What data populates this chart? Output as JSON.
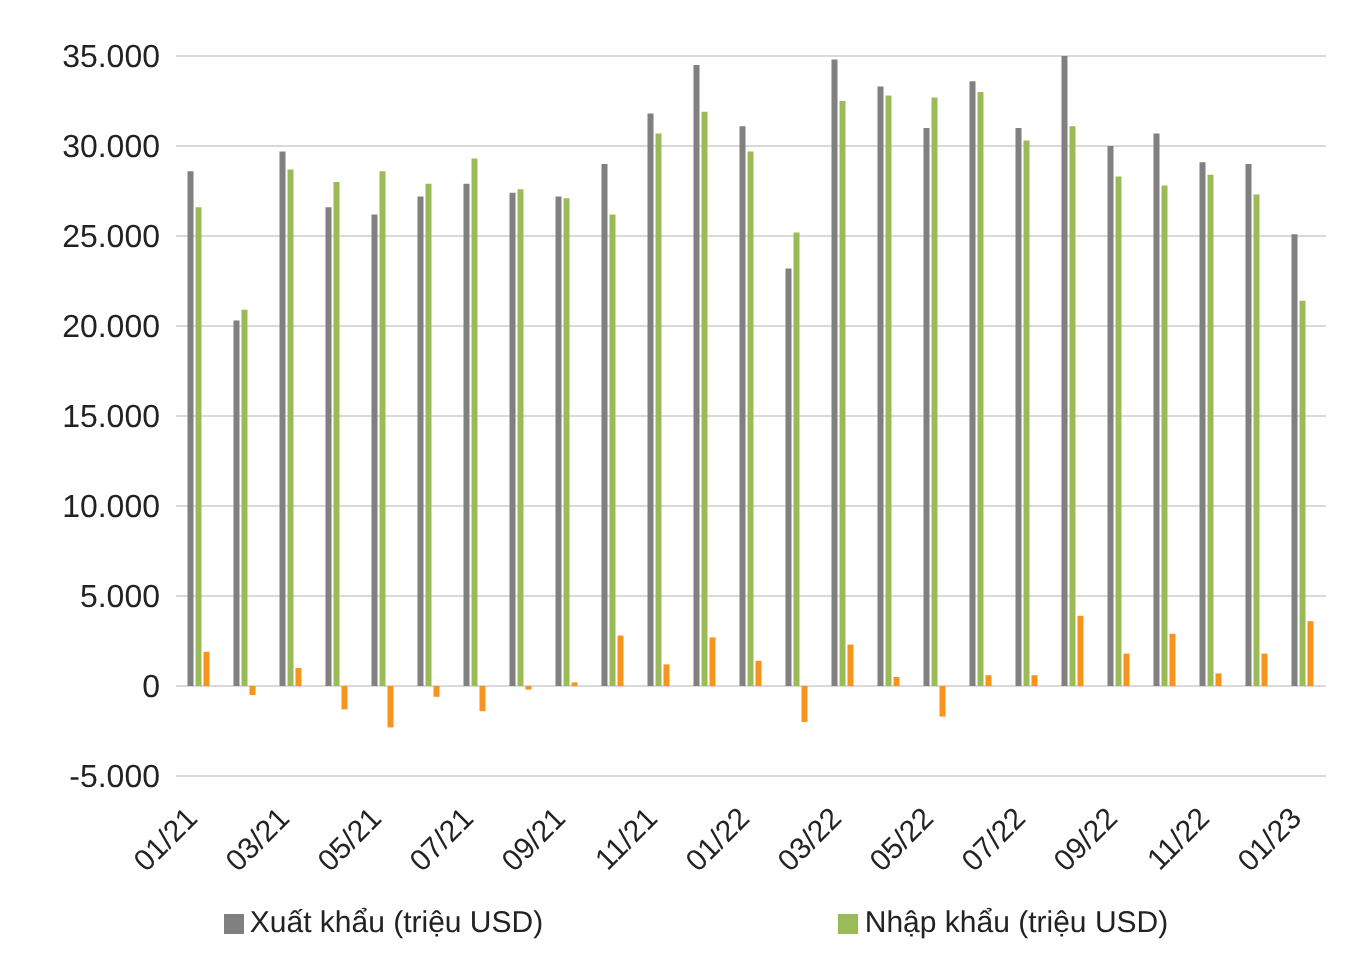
{
  "chart_data": {
    "type": "bar",
    "categories": [
      "01/21",
      null,
      "03/21",
      null,
      "05/21",
      null,
      "07/21",
      null,
      "09/21",
      null,
      "11/21",
      null,
      "01/22",
      null,
      "03/22",
      null,
      "05/22",
      null,
      "07/22",
      null,
      "09/22",
      null,
      "11/22",
      null,
      "01/23"
    ],
    "series": [
      {
        "name": "Xuất khẩu (triệu USD)",
        "color": "#808080",
        "values": [
          28600,
          20300,
          29700,
          26600,
          26200,
          27200,
          27900,
          27400,
          27200,
          29000,
          31800,
          34500,
          31100,
          23200,
          34800,
          33300,
          31000,
          33600,
          31000,
          35000,
          30000,
          30700,
          29100,
          29000,
          25100
        ]
      },
      {
        "name": "Nhập khẩu (triệu USD)",
        "color": "#9bbb59",
        "values": [
          26600,
          20900,
          28700,
          28000,
          28600,
          27900,
          29300,
          27600,
          27100,
          26200,
          30700,
          31900,
          29700,
          25200,
          32500,
          32800,
          32700,
          33000,
          30300,
          31100,
          28300,
          27800,
          28400,
          27300,
          21400
        ]
      },
      {
        "color": "#f7941d",
        "values": [
          1900,
          -500,
          1000,
          -1300,
          -2300,
          -600,
          -1400,
          -200,
          200,
          2800,
          1200,
          2700,
          1400,
          -2000,
          2300,
          500,
          -1700,
          600,
          600,
          3900,
          1800,
          2900,
          700,
          1800,
          3600
        ]
      }
    ],
    "ylim": [
      -5000,
      35000
    ],
    "yticks": [
      {
        "value": -5000,
        "label": "-5.000"
      },
      {
        "value": 0,
        "label": "0"
      },
      {
        "value": 5000,
        "label": "5.000"
      },
      {
        "value": 10000,
        "label": "10.000"
      },
      {
        "value": 15000,
        "label": "15.000"
      },
      {
        "value": 20000,
        "label": "20.000"
      },
      {
        "value": 25000,
        "label": "25.000"
      },
      {
        "value": 30000,
        "label": "30.000"
      },
      {
        "value": 35000,
        "label": "35.000"
      }
    ],
    "grid": "y",
    "legend": "bottom"
  }
}
